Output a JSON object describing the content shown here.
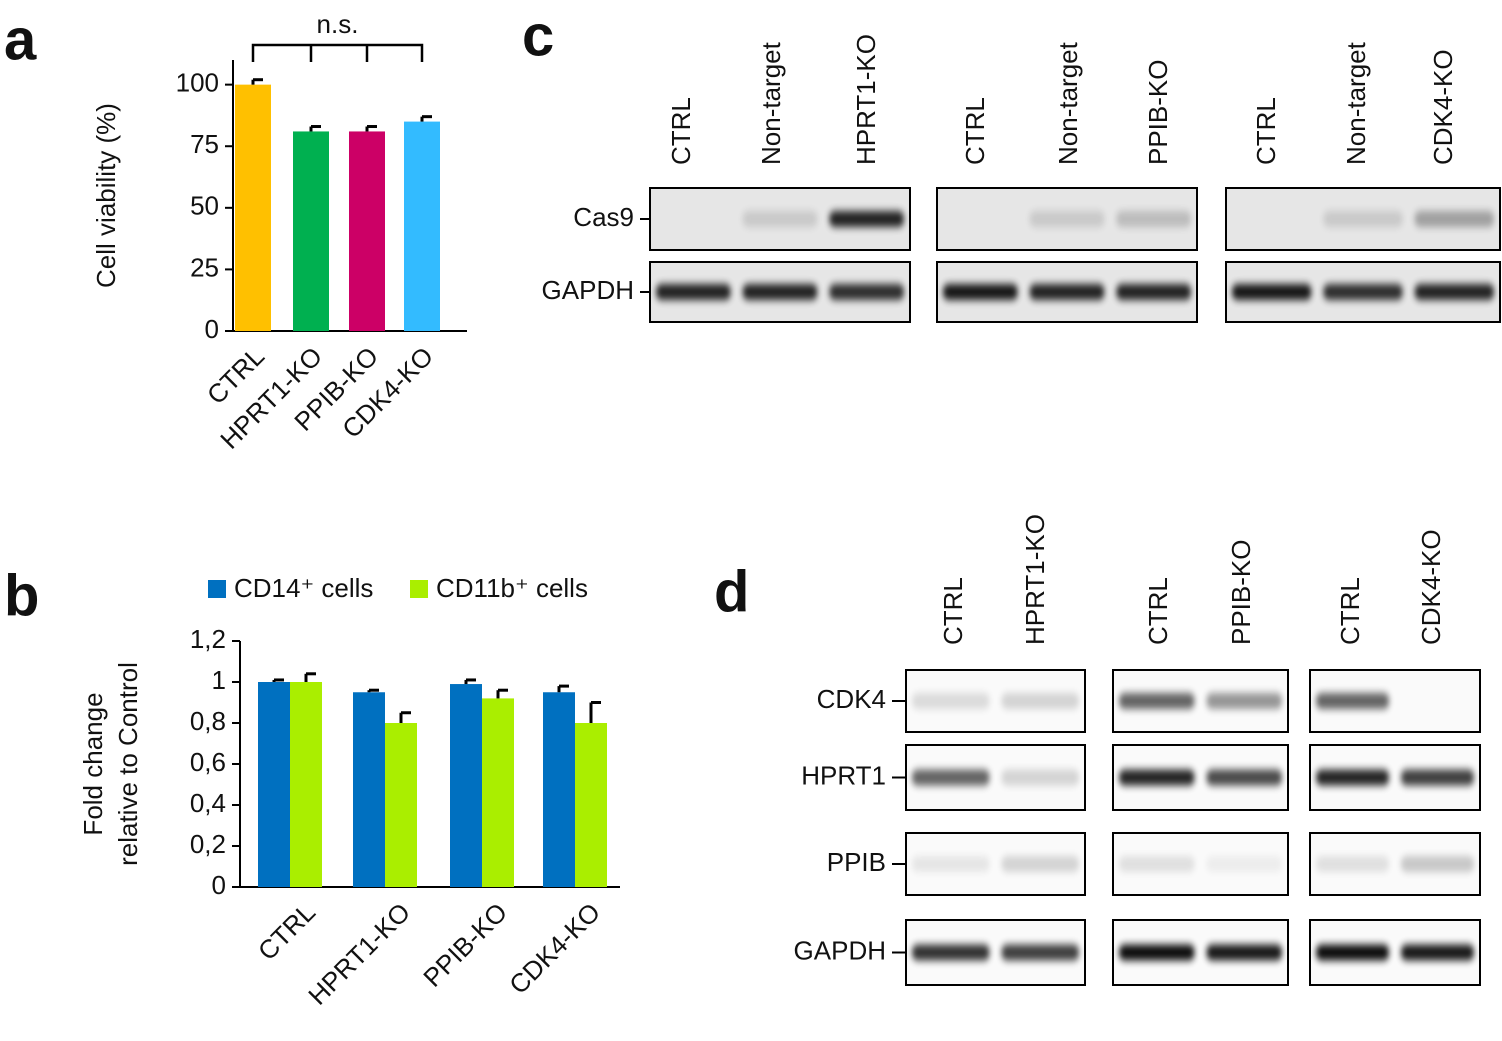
{
  "panel_labels": [
    "a",
    "b",
    "c",
    "d"
  ],
  "chart_data": [
    {
      "type": "bar",
      "ylabel": "Cell viability (%)",
      "annotation": "n.s.",
      "categories": [
        "CTRL",
        "HPRT1-KO",
        "PPIB-KO",
        "CDK4-KO"
      ],
      "values": [
        100,
        81,
        81,
        85
      ],
      "errors": [
        2,
        2,
        2,
        2
      ],
      "colors": [
        "#ffc000",
        "#00b050",
        "#cc0066",
        "#33bbff"
      ],
      "ylim": [
        0,
        110
      ],
      "yticks": [
        0,
        25,
        50,
        75,
        100
      ],
      "grid": false
    },
    {
      "type": "grouped-bar",
      "ylabel": [
        "Fold change",
        "relative to Control"
      ],
      "categories": [
        "CTRL",
        "HPRT1-KO",
        "PPIB-KO",
        "CDK4-KO"
      ],
      "series": [
        {
          "name": "CD14⁺ cells",
          "color": "#0070c0",
          "values": [
            1.0,
            0.95,
            0.99,
            0.95
          ],
          "errors": [
            0.01,
            0.01,
            0.02,
            0.03
          ]
        },
        {
          "name": "CD11b⁺ cells",
          "color": "#aaee00",
          "values": [
            1.0,
            0.8,
            0.92,
            0.8
          ],
          "errors": [
            0.04,
            0.05,
            0.04,
            0.1
          ]
        }
      ],
      "ylim": [
        0,
        1.2
      ],
      "yticks": [
        0,
        {
          "value": 0.2,
          "label": "0,2"
        },
        {
          "value": 0.4,
          "label": "0,4"
        },
        {
          "value": 0.6,
          "label": "0,6"
        },
        {
          "value": 0.8,
          "label": "0,8"
        },
        1,
        {
          "value": 1.2,
          "label": "1,2"
        }
      ],
      "grid": false,
      "legend": "top"
    }
  ],
  "blot_c": {
    "rows": [
      "Cas9",
      "GAPDH"
    ],
    "groups": [
      [
        "CTRL",
        "Non-target",
        "HPRT1-KO"
      ],
      [
        "CTRL",
        "Non-target",
        "PPIB-KO"
      ],
      [
        "CTRL",
        "Non-target",
        "CDK4-KO"
      ]
    ]
  },
  "blot_d": {
    "rows": [
      "CDK4",
      "HPRT1",
      "PPIB",
      "GAPDH"
    ],
    "groups": [
      [
        "CTRL",
        "HPRT1-KO"
      ],
      [
        "CTRL",
        "PPIB-KO"
      ],
      [
        "CTRL",
        "CDK4-KO"
      ]
    ]
  }
}
